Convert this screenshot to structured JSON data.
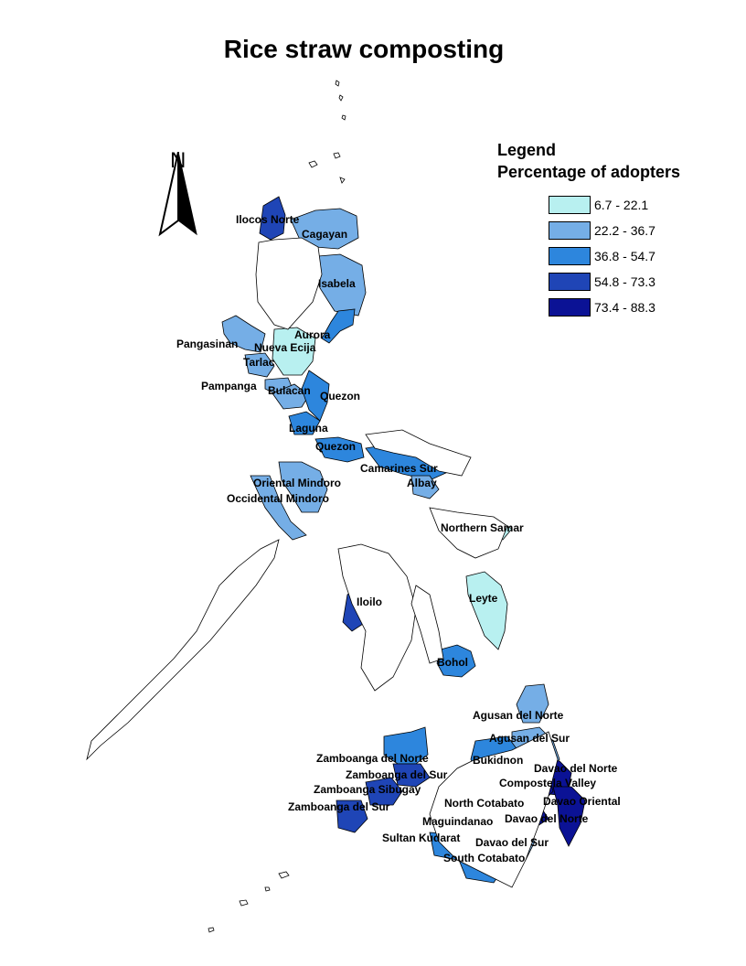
{
  "title": "Rice straw composting",
  "legend": {
    "title": "Legend",
    "subtitle": "Percentage of adopters",
    "classes": [
      {
        "range": "6.7 - 22.1",
        "color": "#b8f0f0"
      },
      {
        "range": "22.2 - 36.7",
        "color": "#75aee6"
      },
      {
        "range": "36.8 - 54.7",
        "color": "#2d86dd"
      },
      {
        "range": "54.8 - 73.3",
        "color": "#1f45b6"
      },
      {
        "range": "73.4 - 88.3",
        "color": "#0b1295"
      }
    ]
  },
  "north_arrow": {
    "letter": "N",
    "icon": "north-arrow-icon"
  },
  "provinces": [
    {
      "name": "Ilocos Norte",
      "class": 3
    },
    {
      "name": "Cagayan",
      "class": 1
    },
    {
      "name": "Isabela",
      "class": 1
    },
    {
      "name": "Aurora",
      "class": 2
    },
    {
      "name": "Pangasinan",
      "class": 1
    },
    {
      "name": "Nueva Ecija",
      "class": 0
    },
    {
      "name": "Tarlac",
      "class": 1
    },
    {
      "name": "Pampanga",
      "class": 1
    },
    {
      "name": "Bulacan",
      "class": 1
    },
    {
      "name": "Quezon",
      "class": 2
    },
    {
      "name": "Laguna",
      "class": 2
    },
    {
      "name": "Quezon",
      "class": 2
    },
    {
      "name": "Camarines Sur",
      "class": 2
    },
    {
      "name": "Albay",
      "class": 1
    },
    {
      "name": "Oriental Mindoro",
      "class": 1
    },
    {
      "name": "Occidental Mindoro",
      "class": 1
    },
    {
      "name": "Northern Samar",
      "class": 0
    },
    {
      "name": "Leyte",
      "class": 0
    },
    {
      "name": "Iloilo",
      "class": 3
    },
    {
      "name": "Bohol",
      "class": 2
    },
    {
      "name": "Agusan del Norte",
      "class": 1
    },
    {
      "name": "Agusan del Sur",
      "class": 1
    },
    {
      "name": "Bukidnon",
      "class": 2
    },
    {
      "name": "Davao del Norte",
      "class": 4
    },
    {
      "name": "Compostela Valley",
      "class": 4
    },
    {
      "name": "Davao Oriental",
      "class": 4
    },
    {
      "name": "North Cotabato",
      "class": 3
    },
    {
      "name": "Davao del Norte",
      "class": 4
    },
    {
      "name": "Maguindanao",
      "class": 3
    },
    {
      "name": "Sultan Kudarat",
      "class": 2
    },
    {
      "name": "Davao del Sur",
      "class": 1
    },
    {
      "name": "South Cotabato",
      "class": 2
    },
    {
      "name": "Zamboanga del Norte",
      "class": 2
    },
    {
      "name": "Zamboanga del Sur",
      "class": 3
    },
    {
      "name": "Zamboanga Sibugay",
      "class": 3
    },
    {
      "name": "Zamboanga del Sur",
      "class": 3
    }
  ]
}
